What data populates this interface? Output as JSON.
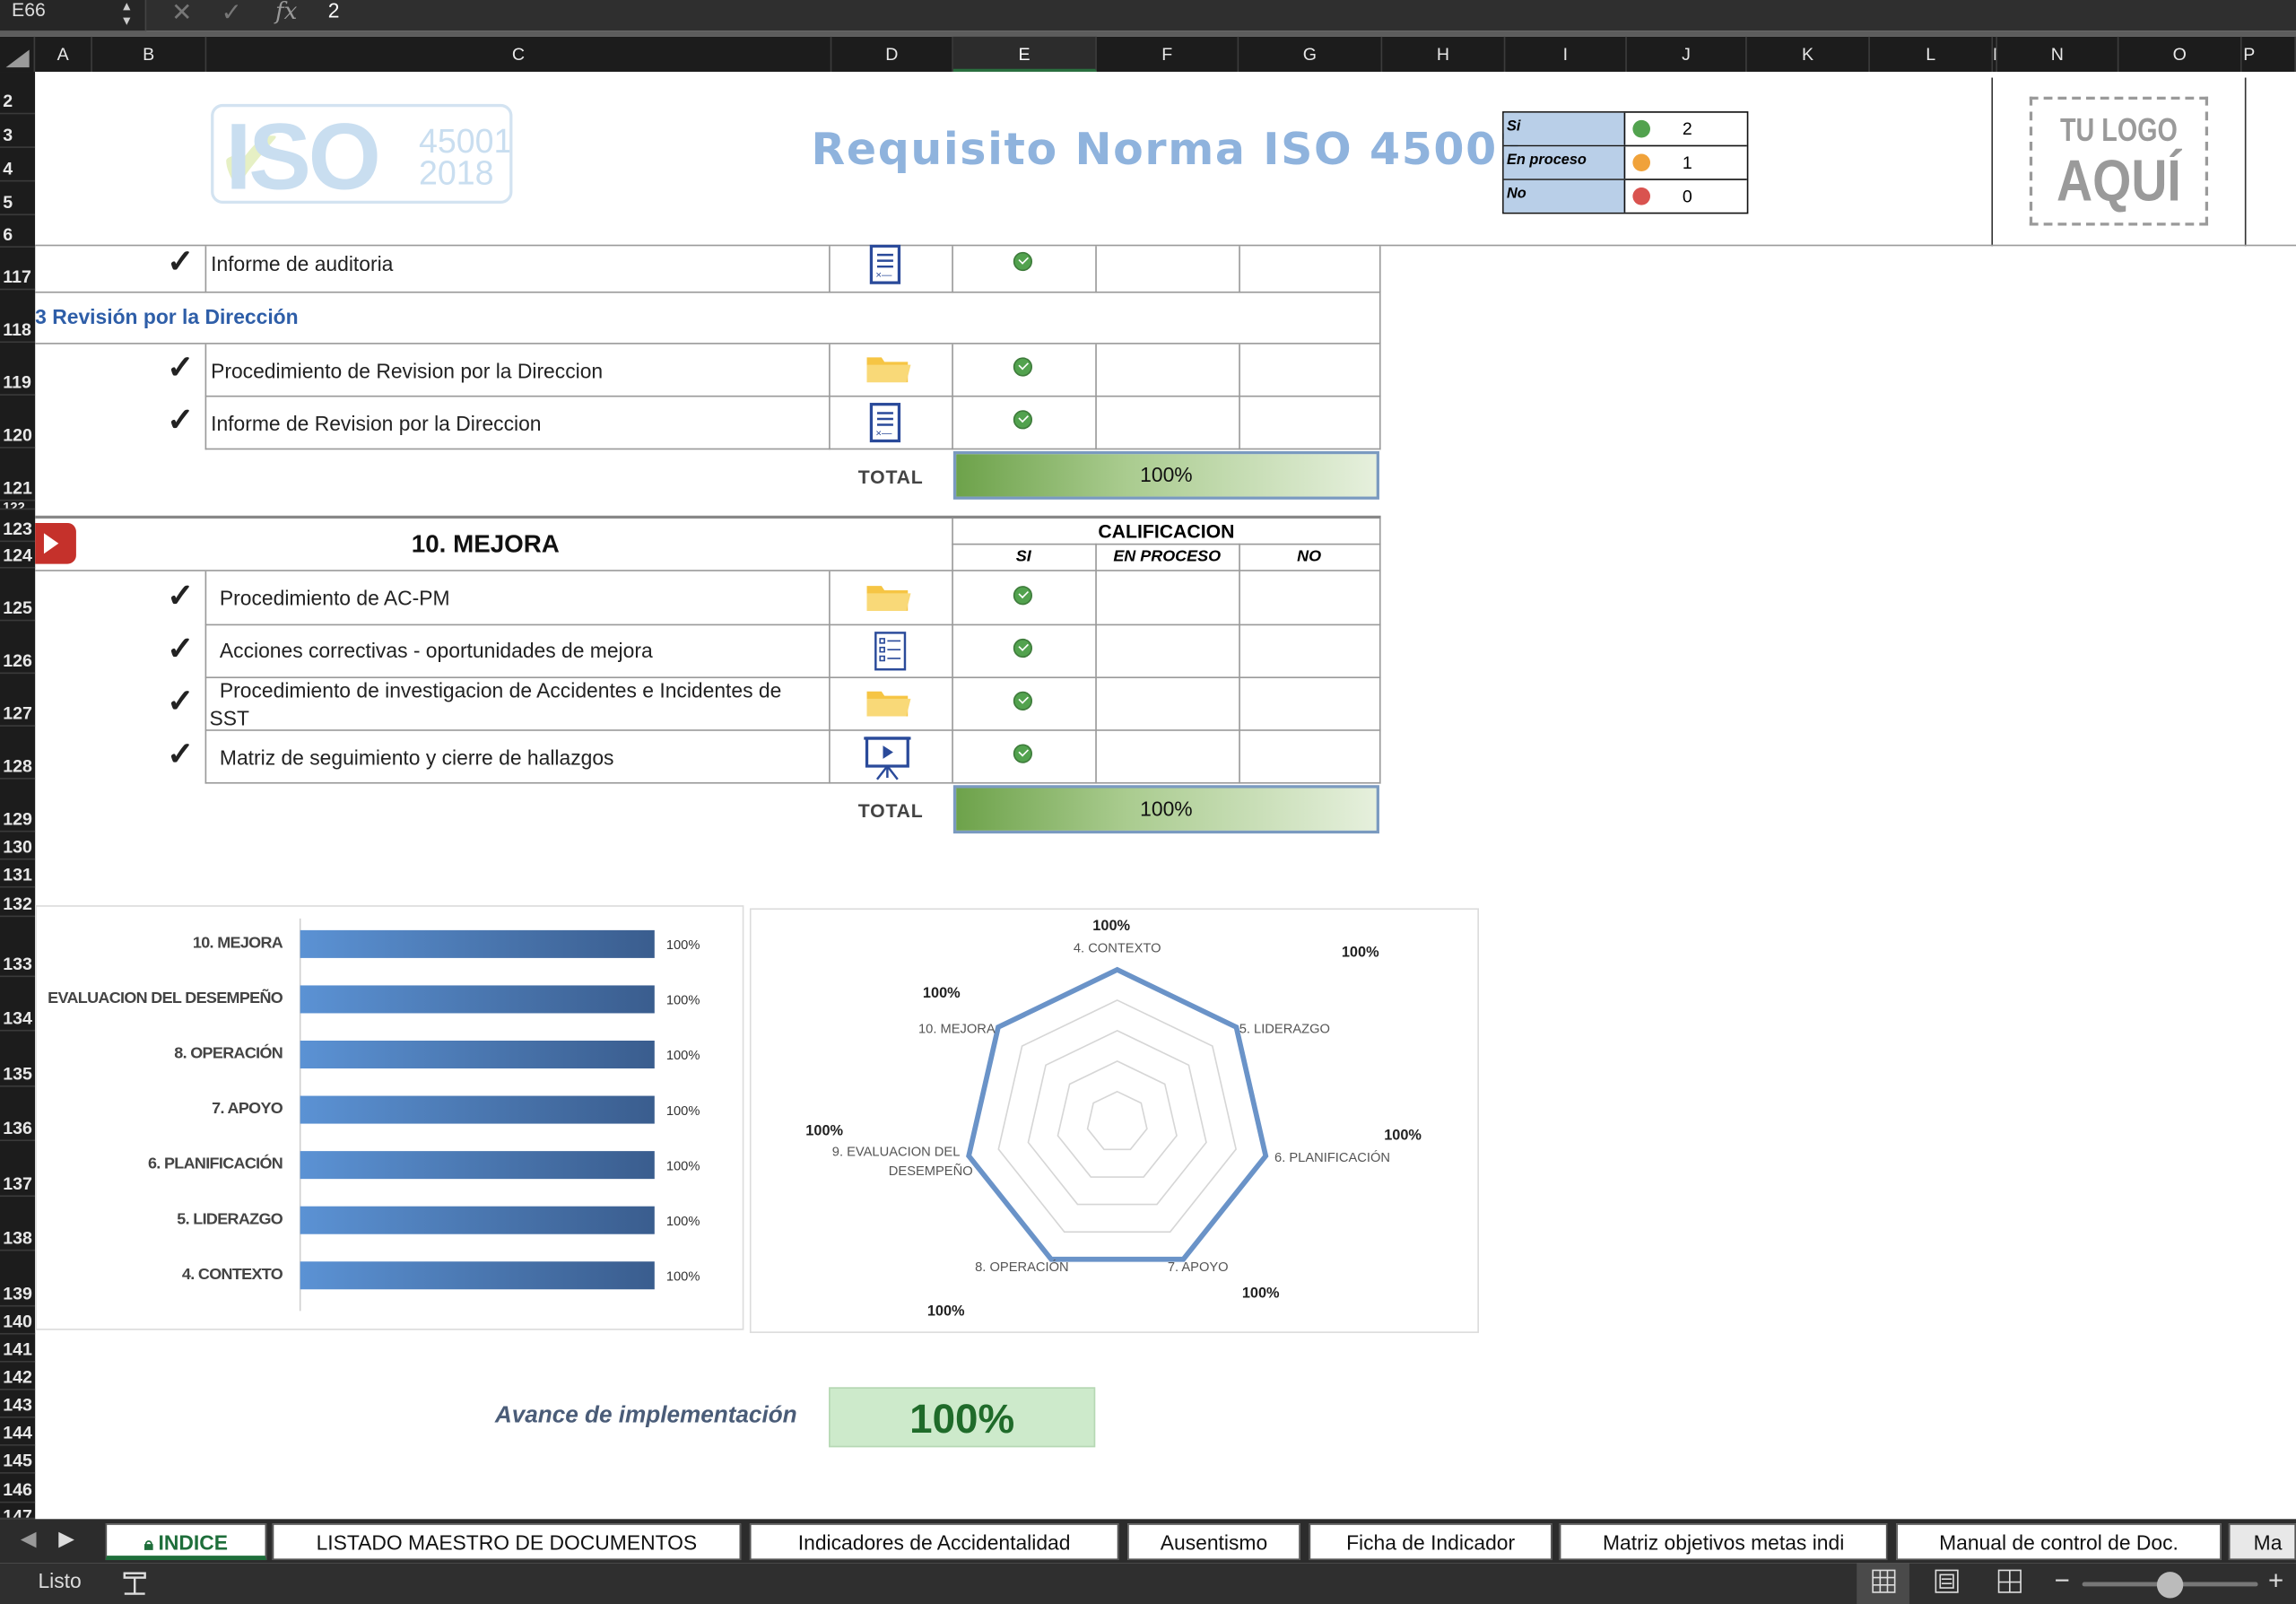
{
  "formula_bar": {
    "name_box": "E66",
    "fx": "fx",
    "value": "2"
  },
  "columns": [
    "A",
    "B",
    "C",
    "D",
    "E",
    "F",
    "G",
    "H",
    "I",
    "J",
    "K",
    "L",
    "M",
    "N",
    "O",
    "P"
  ],
  "rows": [
    {
      "n": "2"
    },
    {
      "n": "3"
    },
    {
      "n": "4"
    },
    {
      "n": "5"
    },
    {
      "n": "6"
    },
    {
      "n": "117"
    },
    {
      "n": "118"
    },
    {
      "n": "119"
    },
    {
      "n": "120"
    },
    {
      "n": "121"
    },
    {
      "n": "122"
    },
    {
      "n": "123"
    },
    {
      "n": "124"
    },
    {
      "n": "125"
    },
    {
      "n": "126"
    },
    {
      "n": "127"
    },
    {
      "n": "128"
    },
    {
      "n": "129"
    },
    {
      "n": "130"
    },
    {
      "n": "131"
    },
    {
      "n": "132"
    },
    {
      "n": "133"
    },
    {
      "n": "134"
    },
    {
      "n": "135"
    },
    {
      "n": "136"
    },
    {
      "n": "137"
    },
    {
      "n": "138"
    },
    {
      "n": "139"
    },
    {
      "n": "140"
    },
    {
      "n": "141"
    },
    {
      "n": "142"
    },
    {
      "n": "143"
    },
    {
      "n": "144"
    },
    {
      "n": "145"
    },
    {
      "n": "146"
    },
    {
      "n": "147"
    }
  ],
  "header": {
    "logo_text": "ISO",
    "logo_year1": "45001",
    "logo_year2": "2018",
    "title": "Requisito Norma ISO 45001",
    "legend": [
      {
        "label": "Si",
        "count": "2",
        "color": "#52a24e"
      },
      {
        "label": "En proceso",
        "count": "1",
        "color": "#f0a23a"
      },
      {
        "label": "No",
        "count": "0",
        "color": "#d9534f"
      }
    ],
    "logo_placeholder_1": "TU LOGO",
    "logo_placeholder_2": "AQUÍ"
  },
  "section9": {
    "item_auditoria": "Informe de auditoria",
    "heading": "3 Revisión por la Dirección",
    "items": [
      "Procedimiento de Revision por la Direccion",
      "Informe de Revision por la Direccion"
    ],
    "total_label": "TOTAL",
    "total_value": "100%"
  },
  "section10": {
    "title": "10. MEJORA",
    "calif": "CALIFICACION",
    "col_si": "SI",
    "col_proc": "EN PROCESO",
    "col_no": "NO",
    "items": [
      "Procedimiento de AC-PM",
      "Acciones correctivas - oportunidades de mejora",
      "Procedimiento de investigacion de Accidentes e Incidentes de",
      "SST",
      "Matriz de seguimiento y cierre de hallazgos"
    ],
    "total_label": "TOTAL",
    "total_value": "100%"
  },
  "chart_data": [
    {
      "type": "bar",
      "orientation": "horizontal",
      "categories": [
        "10. MEJORA",
        "EVALUACION DEL DESEMPEÑO",
        "8. OPERACIÓN",
        "7. APOYO",
        "6. PLANIFICACIÓN",
        "5. LIDERAZGO",
        "4. CONTEXTO"
      ],
      "values": [
        100,
        100,
        100,
        100,
        100,
        100,
        100
      ],
      "value_labels": [
        "100%",
        "100%",
        "100%",
        "100%",
        "100%",
        "100%",
        "100%"
      ],
      "xlim": [
        0,
        100
      ]
    },
    {
      "type": "radar",
      "categories": [
        "4. CONTEXTO",
        "5. LIDERAZGO",
        "6. PLANIFICACIÓN",
        "7. APOYO",
        "8. OPERACIÓN",
        "9. EVALUACION DEL",
        "10. MEJORA"
      ],
      "category_label_line2": "DESEMPEÑO",
      "values": [
        100,
        100,
        100,
        100,
        100,
        100,
        100
      ],
      "value_labels": [
        "100%",
        "100%",
        "100%",
        "100%",
        "100%",
        "100%",
        "100%"
      ],
      "rlim": [
        0,
        100
      ]
    }
  ],
  "avance": {
    "label": "Avance de implementación",
    "value": "100%"
  },
  "tabs": [
    "INDICE",
    "LISTADO MAESTRO DE DOCUMENTOS",
    "Indicadores de Accidentalidad",
    "Ausentismo",
    "Ficha de Indicador",
    "Matriz objetivos metas indi",
    "Manual de control de Doc.",
    "Ma"
  ],
  "status": {
    "ready": "Listo"
  }
}
